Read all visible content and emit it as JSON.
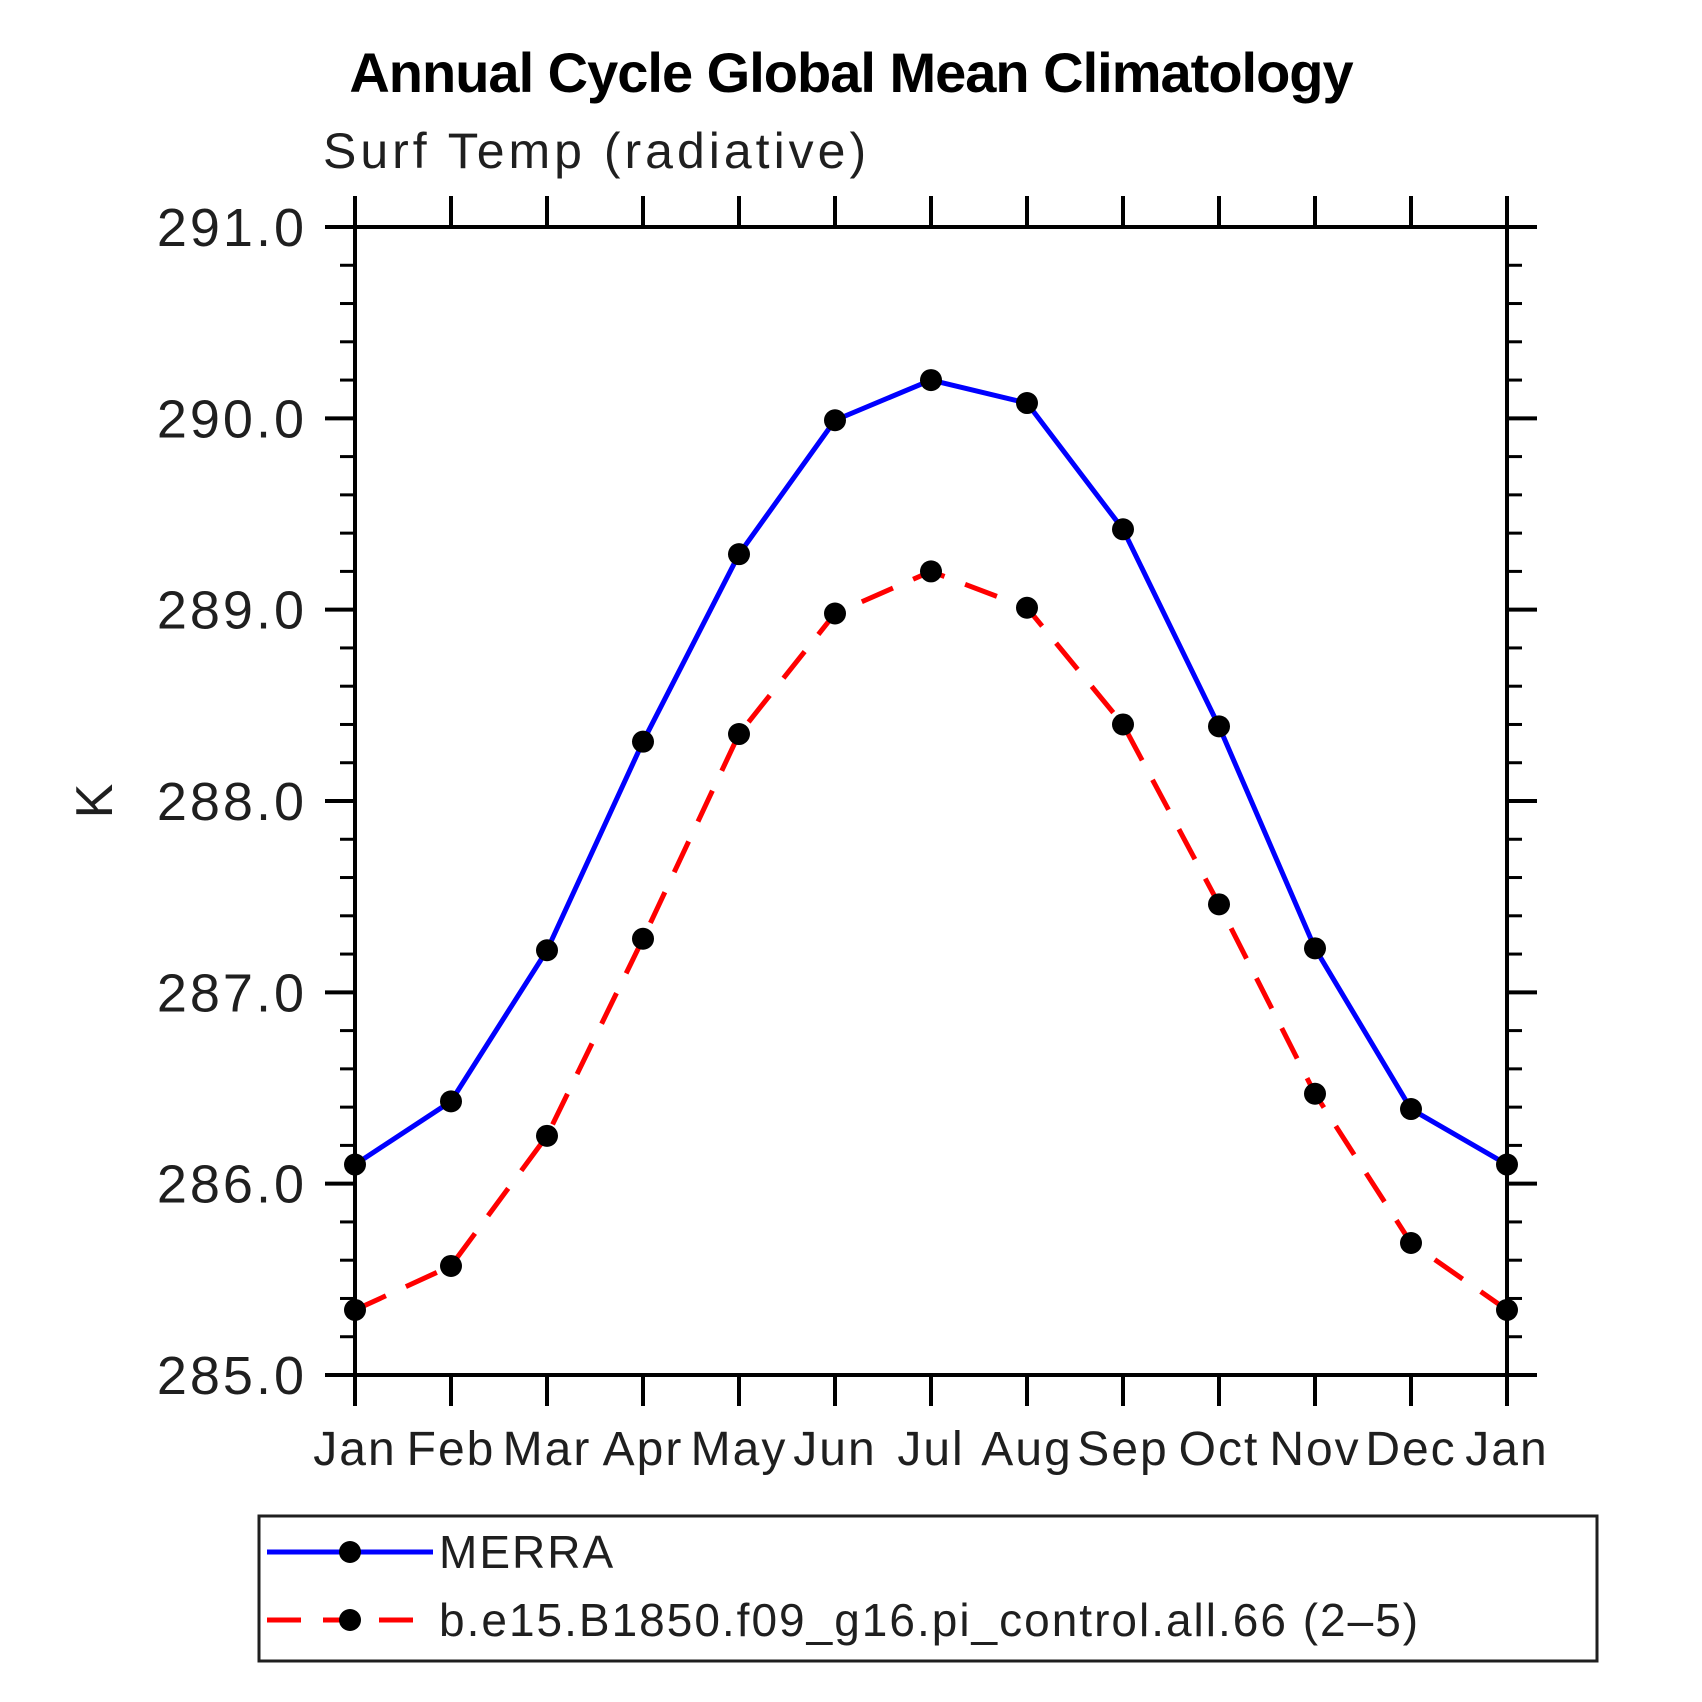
{
  "chart_data": {
    "type": "line",
    "title": "Annual Cycle Global Mean Climatology",
    "subtitle": "Surf Temp (radiative)",
    "ylabel": "K",
    "xlabel": "",
    "categories": [
      "Jan",
      "Feb",
      "Mar",
      "Apr",
      "May",
      "Jun",
      "Jul",
      "Aug",
      "Sep",
      "Oct",
      "Nov",
      "Dec",
      "Jan"
    ],
    "series": [
      {
        "name": "MERRA",
        "color": "#0000ff",
        "line_style": "solid",
        "values": [
          286.1,
          286.43,
          287.22,
          288.31,
          289.29,
          289.99,
          290.2,
          290.08,
          289.42,
          288.39,
          287.23,
          286.39,
          286.1
        ]
      },
      {
        "name": "b.e15.B1850.f09_g16.pi_control.all.66 (2–5)",
        "color": "#ff0000",
        "line_style": "dashed",
        "values": [
          285.34,
          285.57,
          286.25,
          287.28,
          288.35,
          288.98,
          289.2,
          289.01,
          288.4,
          287.46,
          286.47,
          285.69,
          285.34
        ]
      }
    ],
    "ylim": [
      285.0,
      291.0
    ],
    "ytick_major_step": 1.0,
    "ytick_minor_step": 0.2,
    "ytick_labels": [
      "285.0",
      "286.0",
      "287.0",
      "288.0",
      "289.0",
      "290.0",
      "291.0"
    ],
    "grid": false,
    "legend_position": "bottom-box",
    "marker": {
      "shape": "circle",
      "color": "#000000"
    }
  }
}
